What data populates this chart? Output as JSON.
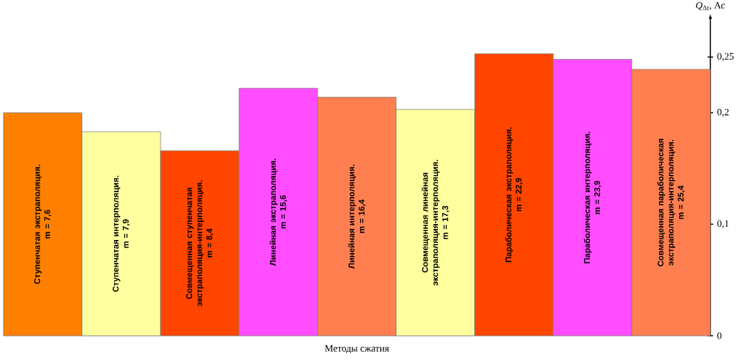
{
  "chart_data": {
    "type": "bar",
    "xlabel": "Методы сжатия",
    "ylabel": "*Q*$_{Δt}$, Ас",
    "categories": [
      "Ступенчатая экстраполяция.",
      "Ступенчатая интерполяция.",
      "Совмещенная ступенчатая экстраполяция-интерполяция.",
      "Линейная экстраполяция.",
      "Линейная интерполяция.",
      "Совмещенная линейная экстраполяция-интерполяция.",
      "Параболическая экстраполяция.",
      "Параболическая интерполяция.",
      "Совмещенная параболическая экстраполяция-интерполяция."
    ],
    "values": [
      0.2,
      0.183,
      0.166,
      0.222,
      0.214,
      0.203,
      0.253,
      0.248,
      0.239
    ],
    "colors": [
      "#ff8000",
      "#ffffa0",
      "#ff4500",
      "#ff4dff",
      "#ff7f50",
      "#ffffa0",
      "#ff4500",
      "#ff4dff",
      "#ff7f50"
    ],
    "annotations": [
      "m = 7,6",
      "m = 7,9",
      "m = 8,4",
      "m = 15,6",
      "m = 16,4",
      "m = 17,3",
      "m = 22,9",
      "m = 23,9",
      "m = 25,4"
    ],
    "ylim": [
      0,
      0.28
    ],
    "yticks": [
      0,
      {
        "value": 0.1,
        "label": "0,1"
      },
      {
        "value": 0.2,
        "label": "0,2"
      },
      {
        "value": 0.25,
        "label": "0,25"
      }
    ],
    "grid": false
  }
}
